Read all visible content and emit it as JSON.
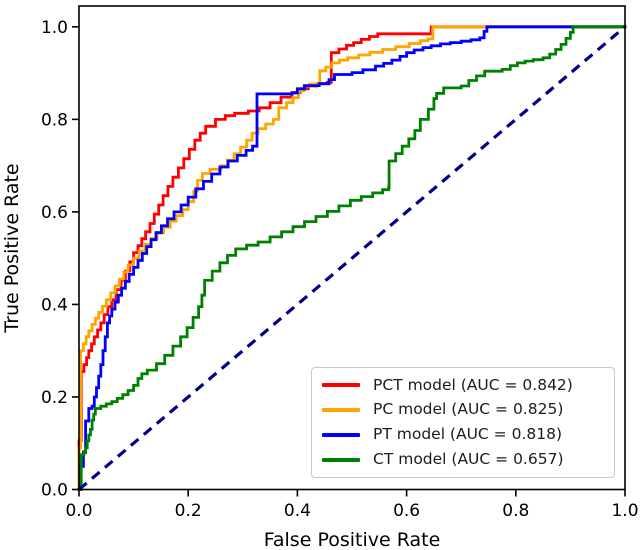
{
  "chart_data": {
    "type": "line",
    "subtype": "roc-curves",
    "title": "",
    "xlabel": "False Positive Rate",
    "ylabel": "True Positive Rate",
    "xlim": [
      0,
      1.0
    ],
    "ylim": [
      0,
      1.045
    ],
    "grid": false,
    "x_ticks": {
      "values": [
        0,
        0.2,
        0.4,
        0.6,
        0.8,
        1.0
      ],
      "labels": [
        "0.0",
        "0.2",
        "0.4",
        "0.6",
        "0.8",
        "1.0"
      ]
    },
    "y_ticks": {
      "values": [
        0,
        0.2,
        0.4,
        0.6,
        0.8,
        1.0
      ],
      "labels": [
        "0.0",
        "0.2",
        "0.4",
        "0.6",
        "0.8",
        "1.0"
      ]
    },
    "legend": {
      "position": "lower right",
      "border_color": "#c9c9c9",
      "background": "#ffffff"
    },
    "series": [
      {
        "id": "pct-model",
        "name": "PCT model",
        "auc": 0.842,
        "legend_label": "PCT model (AUC = 0.842)",
        "color": "#ff0000",
        "style": "solid",
        "points": [
          [
            0,
            0
          ],
          [
            0,
            0.105
          ],
          [
            0.004,
            0.12
          ],
          [
            0.004,
            0.255
          ],
          [
            0.009,
            0.27
          ],
          [
            0.014,
            0.285
          ],
          [
            0.018,
            0.3
          ],
          [
            0.023,
            0.315
          ],
          [
            0.028,
            0.33
          ],
          [
            0.034,
            0.345
          ],
          [
            0.04,
            0.36
          ],
          [
            0.046,
            0.378
          ],
          [
            0.053,
            0.395
          ],
          [
            0.06,
            0.41
          ],
          [
            0.068,
            0.432
          ],
          [
            0.077,
            0.452
          ],
          [
            0.085,
            0.472
          ],
          [
            0.093,
            0.492
          ],
          [
            0.1,
            0.512
          ],
          [
            0.108,
            0.527
          ],
          [
            0.115,
            0.542
          ],
          [
            0.122,
            0.557
          ],
          [
            0.13,
            0.575
          ],
          [
            0.138,
            0.595
          ],
          [
            0.146,
            0.615
          ],
          [
            0.154,
            0.635
          ],
          [
            0.163,
            0.655
          ],
          [
            0.172,
            0.675
          ],
          [
            0.182,
            0.695
          ],
          [
            0.192,
            0.715
          ],
          [
            0.202,
            0.735
          ],
          [
            0.212,
            0.755
          ],
          [
            0.222,
            0.77
          ],
          [
            0.232,
            0.785
          ],
          [
            0.25,
            0.8
          ],
          [
            0.268,
            0.808
          ],
          [
            0.285,
            0.813
          ],
          [
            0.31,
            0.818
          ],
          [
            0.33,
            0.825
          ],
          [
            0.35,
            0.836
          ],
          [
            0.37,
            0.848
          ],
          [
            0.39,
            0.858
          ],
          [
            0.405,
            0.866
          ],
          [
            0.42,
            0.872
          ],
          [
            0.435,
            0.877
          ],
          [
            0.455,
            0.88
          ],
          [
            0.462,
            0.944
          ],
          [
            0.476,
            0.952
          ],
          [
            0.49,
            0.96
          ],
          [
            0.503,
            0.966
          ],
          [
            0.517,
            0.973
          ],
          [
            0.532,
            0.979
          ],
          [
            0.547,
            0.985
          ],
          [
            0.638,
            0.985
          ],
          [
            0.645,
            1.0
          ],
          [
            1,
            1
          ]
        ]
      },
      {
        "id": "pc-model",
        "name": "PC model",
        "auc": 0.825,
        "legend_label": "PC model (AUC = 0.825)",
        "color": "#ffa500",
        "style": "solid",
        "points": [
          [
            0,
            0
          ],
          [
            0,
            0.09
          ],
          [
            0.003,
            0.105
          ],
          [
            0.003,
            0.3
          ],
          [
            0.008,
            0.315
          ],
          [
            0.013,
            0.33
          ],
          [
            0.018,
            0.343
          ],
          [
            0.024,
            0.357
          ],
          [
            0.03,
            0.37
          ],
          [
            0.036,
            0.383
          ],
          [
            0.043,
            0.396
          ],
          [
            0.05,
            0.41
          ],
          [
            0.058,
            0.425
          ],
          [
            0.066,
            0.44
          ],
          [
            0.074,
            0.455
          ],
          [
            0.082,
            0.47
          ],
          [
            0.09,
            0.485
          ],
          [
            0.1,
            0.5
          ],
          [
            0.11,
            0.515
          ],
          [
            0.121,
            0.53
          ],
          [
            0.132,
            0.543
          ],
          [
            0.143,
            0.555
          ],
          [
            0.155,
            0.567
          ],
          [
            0.167,
            0.58
          ],
          [
            0.178,
            0.592
          ],
          [
            0.19,
            0.605
          ],
          [
            0.2,
            0.622
          ],
          [
            0.21,
            0.645
          ],
          [
            0.217,
            0.668
          ],
          [
            0.226,
            0.683
          ],
          [
            0.24,
            0.692
          ],
          [
            0.26,
            0.7
          ],
          [
            0.272,
            0.712
          ],
          [
            0.284,
            0.726
          ],
          [
            0.296,
            0.74
          ],
          [
            0.307,
            0.755
          ],
          [
            0.317,
            0.77
          ],
          [
            0.328,
            0.78
          ],
          [
            0.342,
            0.79
          ],
          [
            0.356,
            0.8
          ],
          [
            0.366,
            0.825
          ],
          [
            0.38,
            0.836
          ],
          [
            0.392,
            0.847
          ],
          [
            0.402,
            0.862
          ],
          [
            0.412,
            0.872
          ],
          [
            0.422,
            0.876
          ],
          [
            0.436,
            0.878
          ],
          [
            0.441,
            0.905
          ],
          [
            0.452,
            0.913
          ],
          [
            0.463,
            0.922
          ],
          [
            0.477,
            0.928
          ],
          [
            0.492,
            0.933
          ],
          [
            0.512,
            0.939
          ],
          [
            0.533,
            0.945
          ],
          [
            0.556,
            0.951
          ],
          [
            0.58,
            0.957
          ],
          [
            0.605,
            0.964
          ],
          [
            0.625,
            0.97
          ],
          [
            0.639,
            0.974
          ],
          [
            0.648,
            1.0
          ],
          [
            0.755,
            1.0
          ],
          [
            1,
            1
          ]
        ]
      },
      {
        "id": "pt-model",
        "name": "PT model",
        "auc": 0.818,
        "legend_label": "PT model (AUC = 0.818)",
        "color": "#0000ff",
        "style": "solid",
        "points": [
          [
            0,
            0
          ],
          [
            0.002,
            0.03
          ],
          [
            0.002,
            0.05
          ],
          [
            0.008,
            0.055
          ],
          [
            0.008,
            0.08
          ],
          [
            0.012,
            0.09
          ],
          [
            0.012,
            0.148
          ],
          [
            0.018,
            0.152
          ],
          [
            0.018,
            0.175
          ],
          [
            0.024,
            0.18
          ],
          [
            0.028,
            0.2
          ],
          [
            0.032,
            0.22
          ],
          [
            0.036,
            0.245
          ],
          [
            0.04,
            0.27
          ],
          [
            0.044,
            0.3
          ],
          [
            0.048,
            0.33
          ],
          [
            0.052,
            0.36
          ],
          [
            0.056,
            0.375
          ],
          [
            0.06,
            0.39
          ],
          [
            0.066,
            0.405
          ],
          [
            0.072,
            0.42
          ],
          [
            0.078,
            0.435
          ],
          [
            0.085,
            0.45
          ],
          [
            0.092,
            0.465
          ],
          [
            0.1,
            0.48
          ],
          [
            0.108,
            0.495
          ],
          [
            0.116,
            0.51
          ],
          [
            0.124,
            0.525
          ],
          [
            0.132,
            0.54
          ],
          [
            0.141,
            0.555
          ],
          [
            0.151,
            0.57
          ],
          [
            0.162,
            0.585
          ],
          [
            0.174,
            0.6
          ],
          [
            0.187,
            0.615
          ],
          [
            0.2,
            0.632
          ],
          [
            0.214,
            0.65
          ],
          [
            0.228,
            0.666
          ],
          [
            0.243,
            0.682
          ],
          [
            0.258,
            0.697
          ],
          [
            0.273,
            0.71
          ],
          [
            0.29,
            0.722
          ],
          [
            0.306,
            0.733
          ],
          [
            0.318,
            0.742
          ],
          [
            0.326,
            0.75
          ],
          [
            0.326,
            0.855
          ],
          [
            0.39,
            0.857
          ],
          [
            0.4,
            0.866
          ],
          [
            0.413,
            0.873
          ],
          [
            0.44,
            0.877
          ],
          [
            0.458,
            0.886
          ],
          [
            0.468,
            0.897
          ],
          [
            0.5,
            0.901
          ],
          [
            0.52,
            0.907
          ],
          [
            0.543,
            0.915
          ],
          [
            0.558,
            0.921
          ],
          [
            0.573,
            0.928
          ],
          [
            0.588,
            0.936
          ],
          [
            0.6,
            0.944
          ],
          [
            0.614,
            0.95
          ],
          [
            0.63,
            0.955
          ],
          [
            0.645,
            0.959
          ],
          [
            0.662,
            0.963
          ],
          [
            0.68,
            0.966
          ],
          [
            0.7,
            0.969
          ],
          [
            0.718,
            0.972
          ],
          [
            0.734,
            0.976
          ],
          [
            0.742,
            0.99
          ],
          [
            0.747,
            1.0
          ],
          [
            1,
            1
          ]
        ]
      },
      {
        "id": "ct-model",
        "name": "CT model",
        "auc": 0.657,
        "legend_label": "CT model (AUC = 0.657)",
        "color": "#008000",
        "style": "solid",
        "points": [
          [
            0,
            0
          ],
          [
            0.004,
            0.02
          ],
          [
            0.004,
            0.075
          ],
          [
            0.009,
            0.082
          ],
          [
            0.012,
            0.09
          ],
          [
            0.015,
            0.105
          ],
          [
            0.018,
            0.118
          ],
          [
            0.021,
            0.13
          ],
          [
            0.024,
            0.15
          ],
          [
            0.027,
            0.163
          ],
          [
            0.03,
            0.175
          ],
          [
            0.04,
            0.18
          ],
          [
            0.05,
            0.185
          ],
          [
            0.06,
            0.19
          ],
          [
            0.07,
            0.197
          ],
          [
            0.08,
            0.205
          ],
          [
            0.09,
            0.214
          ],
          [
            0.1,
            0.225
          ],
          [
            0.108,
            0.24
          ],
          [
            0.115,
            0.25
          ],
          [
            0.125,
            0.258
          ],
          [
            0.142,
            0.272
          ],
          [
            0.157,
            0.29
          ],
          [
            0.172,
            0.31
          ],
          [
            0.186,
            0.33
          ],
          [
            0.198,
            0.35
          ],
          [
            0.209,
            0.372
          ],
          [
            0.219,
            0.395
          ],
          [
            0.225,
            0.42
          ],
          [
            0.23,
            0.452
          ],
          [
            0.244,
            0.472
          ],
          [
            0.258,
            0.49
          ],
          [
            0.272,
            0.506
          ],
          [
            0.287,
            0.52
          ],
          [
            0.307,
            0.528
          ],
          [
            0.328,
            0.535
          ],
          [
            0.35,
            0.546
          ],
          [
            0.371,
            0.557
          ],
          [
            0.392,
            0.568
          ],
          [
            0.413,
            0.579
          ],
          [
            0.434,
            0.59
          ],
          [
            0.455,
            0.601
          ],
          [
            0.476,
            0.613
          ],
          [
            0.497,
            0.625
          ],
          [
            0.517,
            0.633
          ],
          [
            0.538,
            0.641
          ],
          [
            0.556,
            0.648
          ],
          [
            0.567,
            0.652
          ],
          [
            0.568,
            0.71
          ],
          [
            0.58,
            0.726
          ],
          [
            0.592,
            0.742
          ],
          [
            0.604,
            0.758
          ],
          [
            0.615,
            0.776
          ],
          [
            0.625,
            0.8
          ],
          [
            0.64,
            0.822
          ],
          [
            0.65,
            0.845
          ],
          [
            0.655,
            0.856
          ],
          [
            0.668,
            0.868
          ],
          [
            0.7,
            0.872
          ],
          [
            0.714,
            0.884
          ],
          [
            0.728,
            0.894
          ],
          [
            0.743,
            0.904
          ],
          [
            0.775,
            0.908
          ],
          [
            0.79,
            0.916
          ],
          [
            0.803,
            0.922
          ],
          [
            0.817,
            0.926
          ],
          [
            0.832,
            0.929
          ],
          [
            0.85,
            0.933
          ],
          [
            0.862,
            0.941
          ],
          [
            0.873,
            0.951
          ],
          [
            0.883,
            0.962
          ],
          [
            0.892,
            0.975
          ],
          [
            0.9,
            0.988
          ],
          [
            0.905,
            1.0
          ],
          [
            1,
            1
          ]
        ]
      }
    ],
    "reference_line": {
      "id": "chance-diagonal",
      "color": "#00008b",
      "style": "dashed",
      "from": [
        0,
        0
      ],
      "to": [
        1,
        1
      ]
    }
  }
}
